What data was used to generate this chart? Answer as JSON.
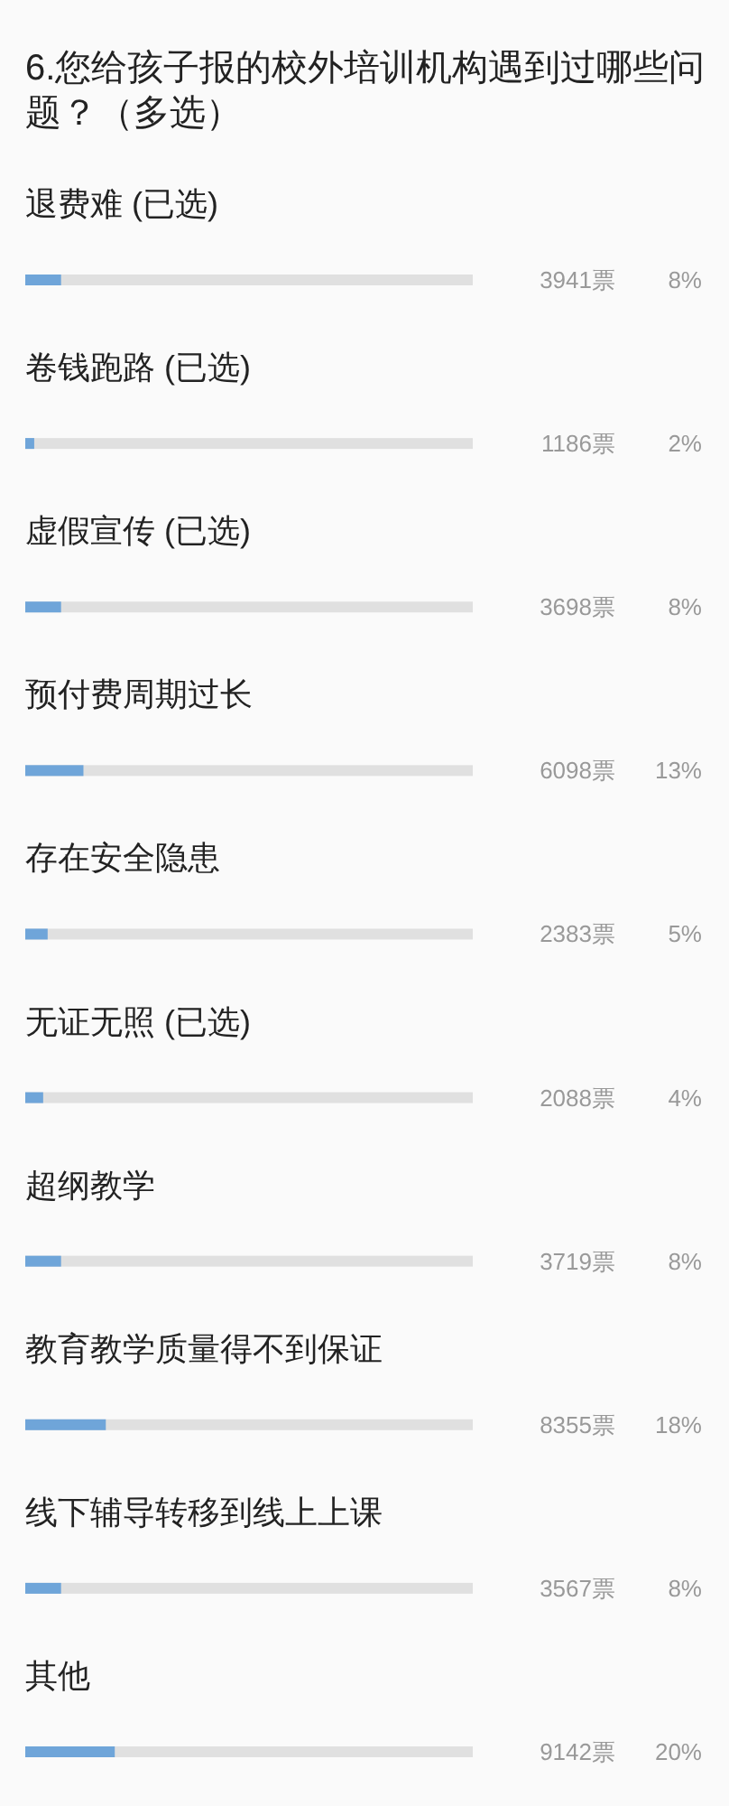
{
  "chart_data": {
    "type": "bar",
    "orientation": "horizontal",
    "title": "6.您给孩子报的校外培训机构遇到过哪些问题？（多选）",
    "categories": [
      "退费难 (已选)",
      "卷钱跑路 (已选)",
      "虚假宣传 (已选)",
      "预付费周期过长",
      "存在安全隐患",
      "无证无照 (已选)",
      "超纲教学",
      "教育教学质量得不到保证",
      "线下辅导转移到线上上课",
      "其他"
    ],
    "values": [
      8,
      2,
      8,
      13,
      5,
      4,
      8,
      18,
      8,
      20
    ],
    "value_labels": [
      "8%",
      "2%",
      "8%",
      "13%",
      "5%",
      "4%",
      "8%",
      "18%",
      "8%",
      "20%"
    ],
    "color": "#6fa5d9",
    "xlim": [
      0,
      100
    ],
    "tick_labels": "y",
    "annotations": [
      "3941票",
      "1186票",
      "3698票",
      "6098票",
      "2383票",
      "2088票",
      "3719票",
      "8355票",
      "3567票",
      "9142票"
    ]
  }
}
